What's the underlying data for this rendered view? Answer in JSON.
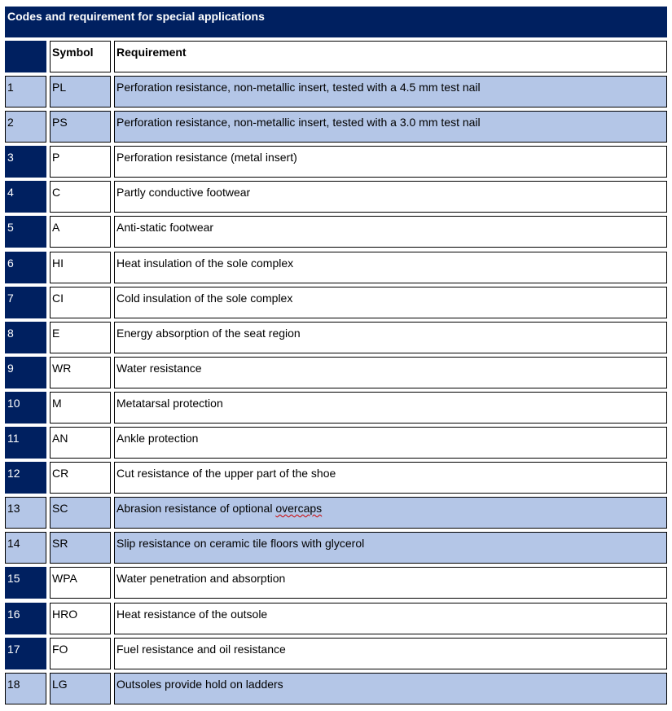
{
  "title": "Codes and requirement for special applications",
  "header": {
    "number": "",
    "symbol": "Symbol",
    "requirement": "Requirement"
  },
  "colors": {
    "navy": "#002060",
    "highlight": "#b4c6e7"
  },
  "rows": [
    {
      "number": "1",
      "symbol": "PL",
      "requirement": "Perforation resistance, non-metallic insert, tested with a 4.5 mm test nail",
      "highlighted": true
    },
    {
      "number": "2",
      "symbol": "PS",
      "requirement": "Perforation resistance, non-metallic insert, tested with a 3.0 mm test nail",
      "highlighted": true
    },
    {
      "number": "3",
      "symbol": "P",
      "requirement": "Perforation resistance (metal insert)",
      "highlighted": false
    },
    {
      "number": "4",
      "symbol": "C",
      "requirement": "Partly conductive footwear",
      "highlighted": false
    },
    {
      "number": "5",
      "symbol": "A",
      "requirement": "Anti-static footwear",
      "highlighted": false
    },
    {
      "number": "6",
      "symbol": "HI",
      "requirement": "Heat insulation of the sole complex",
      "highlighted": false
    },
    {
      "number": "7",
      "symbol": "CI",
      "requirement": "Cold insulation of the sole complex",
      "highlighted": false
    },
    {
      "number": "8",
      "symbol": "E",
      "requirement": "Energy absorption of the seat region",
      "highlighted": false
    },
    {
      "number": "9",
      "symbol": "WR",
      "requirement": "Water resistance",
      "highlighted": false
    },
    {
      "number": "10",
      "symbol": "M",
      "requirement": "Metatarsal protection",
      "highlighted": false
    },
    {
      "number": "11",
      "symbol": "AN",
      "requirement": "Ankle protection",
      "highlighted": false
    },
    {
      "number": "12",
      "symbol": "CR",
      "requirement": "Cut resistance of the upper part of the shoe",
      "highlighted": false
    },
    {
      "number": "13",
      "symbol": "SC",
      "requirement": "Abrasion resistance of optional ",
      "requirement_misspelled": "overcaps",
      "highlighted": true
    },
    {
      "number": "14",
      "symbol": "SR",
      "requirement": "Slip resistance on ceramic tile floors with glycerol",
      "highlighted": true
    },
    {
      "number": "15",
      "symbol": "WPA",
      "requirement": "Water penetration and absorption",
      "highlighted": false
    },
    {
      "number": "16",
      "symbol": "HRO",
      "requirement": "Heat resistance of the outsole",
      "highlighted": false
    },
    {
      "number": "17",
      "symbol": "FO",
      "requirement": "Fuel resistance and oil resistance",
      "highlighted": false
    },
    {
      "number": "18",
      "symbol": "LG",
      "requirement": "Outsoles provide hold on ladders",
      "highlighted": true
    }
  ]
}
